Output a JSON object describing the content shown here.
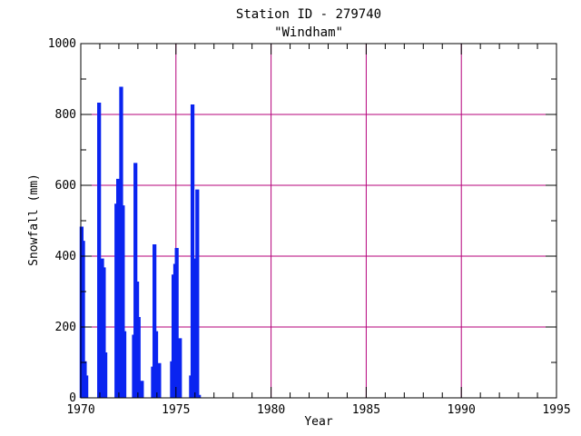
{
  "chart_data": {
    "type": "bar",
    "title": "Station ID - 279740",
    "subtitle": "\"Windham\"",
    "xlabel": "Year",
    "ylabel": "Snowfall (mm)",
    "xlim": [
      1970,
      1995
    ],
    "ylim": [
      0,
      1000
    ],
    "x_ticks": [
      1970,
      1975,
      1980,
      1985,
      1990,
      1995
    ],
    "y_ticks": [
      0,
      200,
      400,
      600,
      800,
      1000
    ],
    "grid": true,
    "series": [
      {
        "values": [
          {
            "x": 1970.0,
            "y": 480
          },
          {
            "x": 1970.08,
            "y": 440
          },
          {
            "x": 1970.17,
            "y": 100
          },
          {
            "x": 1970.25,
            "y": 60
          },
          {
            "x": 1970.92,
            "y": 830
          },
          {
            "x": 1971.0,
            "y": 320
          },
          {
            "x": 1971.08,
            "y": 390
          },
          {
            "x": 1971.17,
            "y": 365
          },
          {
            "x": 1971.25,
            "y": 125
          },
          {
            "x": 1971.83,
            "y": 545
          },
          {
            "x": 1971.92,
            "y": 615
          },
          {
            "x": 1972.0,
            "y": 265
          },
          {
            "x": 1972.08,
            "y": 875
          },
          {
            "x": 1972.17,
            "y": 540
          },
          {
            "x": 1972.25,
            "y": 185
          },
          {
            "x": 1972.75,
            "y": 175
          },
          {
            "x": 1972.83,
            "y": 660
          },
          {
            "x": 1972.92,
            "y": 325
          },
          {
            "x": 1973.0,
            "y": 225
          },
          {
            "x": 1973.17,
            "y": 45
          },
          {
            "x": 1973.75,
            "y": 85
          },
          {
            "x": 1973.83,
            "y": 430
          },
          {
            "x": 1973.92,
            "y": 185
          },
          {
            "x": 1974.08,
            "y": 95
          },
          {
            "x": 1974.75,
            "y": 100
          },
          {
            "x": 1974.83,
            "y": 345
          },
          {
            "x": 1974.92,
            "y": 375
          },
          {
            "x": 1975.0,
            "y": 420
          },
          {
            "x": 1975.08,
            "y": 45
          },
          {
            "x": 1975.17,
            "y": 165
          },
          {
            "x": 1975.75,
            "y": 60
          },
          {
            "x": 1975.83,
            "y": 825
          },
          {
            "x": 1975.92,
            "y": 390
          },
          {
            "x": 1976.0,
            "y": 125
          },
          {
            "x": 1976.08,
            "y": 585
          },
          {
            "x": 1976.17,
            "y": 5
          }
        ]
      }
    ],
    "colors": {
      "bars": "#0a24f0",
      "grid": "#b5007a",
      "axes": "#000000",
      "background": "#ffffff"
    }
  }
}
